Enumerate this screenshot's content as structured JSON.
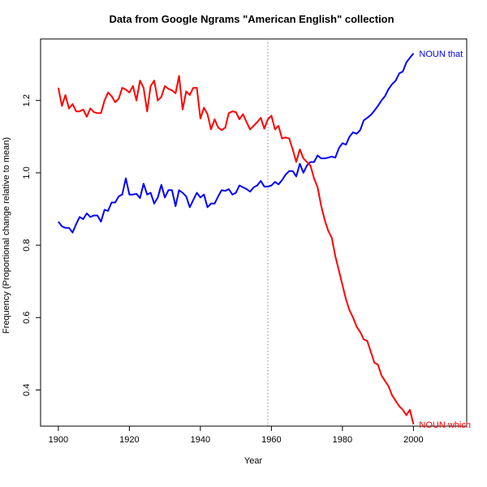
{
  "chart_data": {
    "type": "line",
    "title": "Data from Google Ngrams \"American English\" collection",
    "xlabel": "Year",
    "ylabel": "Frequency (Proportional change relative to mean)",
    "xlim": [
      1895,
      2015
    ],
    "ylim": [
      0.3,
      1.37
    ],
    "xticks": [
      1900,
      1920,
      1940,
      1960,
      1980,
      2000
    ],
    "yticks": [
      0.4,
      0.6,
      0.8,
      1.0,
      1.2
    ],
    "ytick_labels": [
      "0.4",
      "0.6",
      "0.8",
      "1.0",
      "1.2"
    ],
    "reference_line": {
      "x": 1959,
      "style": "dotted",
      "color": "#888888"
    },
    "grid": false,
    "series": [
      {
        "name": "NOUN that",
        "color": "#0000ff",
        "x": [
          1900,
          1901,
          1902,
          1903,
          1904,
          1905,
          1906,
          1907,
          1908,
          1909,
          1910,
          1911,
          1912,
          1913,
          1914,
          1915,
          1916,
          1917,
          1918,
          1919,
          1920,
          1921,
          1922,
          1923,
          1924,
          1925,
          1926,
          1927,
          1928,
          1929,
          1930,
          1931,
          1932,
          1933,
          1934,
          1935,
          1936,
          1937,
          1938,
          1939,
          1940,
          1941,
          1942,
          1943,
          1944,
          1945,
          1946,
          1947,
          1948,
          1949,
          1950,
          1951,
          1952,
          1953,
          1954,
          1955,
          1956,
          1957,
          1958,
          1959,
          1960,
          1961,
          1962,
          1963,
          1964,
          1965,
          1966,
          1967,
          1968,
          1969,
          1970,
          1971,
          1972,
          1973,
          1974,
          1975,
          1976,
          1977,
          1978,
          1979,
          1980,
          1981,
          1982,
          1983,
          1984,
          1985,
          1986,
          1987,
          1988,
          1989,
          1990,
          1991,
          1992,
          1993,
          1994,
          1995,
          1996,
          1997,
          1998,
          1999,
          2000
        ],
        "y": [
          0.865,
          0.852,
          0.848,
          0.848,
          0.835,
          0.858,
          0.878,
          0.872,
          0.888,
          0.878,
          0.882,
          0.882,
          0.865,
          0.898,
          0.895,
          0.918,
          0.918,
          0.935,
          0.94,
          0.985,
          0.94,
          0.94,
          0.942,
          0.93,
          0.97,
          0.94,
          0.945,
          0.915,
          0.932,
          0.967,
          0.932,
          0.952,
          0.952,
          0.908,
          0.952,
          0.945,
          0.935,
          0.905,
          0.925,
          0.945,
          0.932,
          0.94,
          0.905,
          0.915,
          0.915,
          0.935,
          0.952,
          0.95,
          0.955,
          0.94,
          0.945,
          0.965,
          0.96,
          0.955,
          0.948,
          0.96,
          0.965,
          0.978,
          0.962,
          0.962,
          0.965,
          0.975,
          0.968,
          0.98,
          0.995,
          1.005,
          1.005,
          0.99,
          1.025,
          1.0,
          1.02,
          1.03,
          1.03,
          1.048,
          1.04,
          1.04,
          1.042,
          1.045,
          1.042,
          1.068,
          1.082,
          1.078,
          1.1,
          1.112,
          1.108,
          1.118,
          1.145,
          1.152,
          1.16,
          1.172,
          1.185,
          1.2,
          1.212,
          1.232,
          1.245,
          1.255,
          1.275,
          1.28,
          1.305,
          1.318,
          1.33
        ]
      },
      {
        "name": "NOUN which",
        "color": "#ff0000",
        "x": [
          1900,
          1901,
          1902,
          1903,
          1904,
          1905,
          1906,
          1907,
          1908,
          1909,
          1910,
          1911,
          1912,
          1913,
          1914,
          1915,
          1916,
          1917,
          1918,
          1919,
          1920,
          1921,
          1922,
          1923,
          1924,
          1925,
          1926,
          1927,
          1928,
          1929,
          1930,
          1931,
          1932,
          1933,
          1934,
          1935,
          1936,
          1937,
          1938,
          1939,
          1940,
          1941,
          1942,
          1943,
          1944,
          1945,
          1946,
          1947,
          1948,
          1949,
          1950,
          1951,
          1952,
          1953,
          1954,
          1955,
          1956,
          1957,
          1958,
          1959,
          1960,
          1961,
          1962,
          1963,
          1964,
          1965,
          1966,
          1967,
          1968,
          1969,
          1970,
          1971,
          1972,
          1973,
          1974,
          1975,
          1976,
          1977,
          1978,
          1979,
          1980,
          1981,
          1982,
          1983,
          1984,
          1985,
          1986,
          1987,
          1988,
          1989,
          1990,
          1991,
          1992,
          1993,
          1994,
          1995,
          1996,
          1997,
          1998,
          1999,
          2000
        ],
        "y": [
          1.235,
          1.185,
          1.215,
          1.178,
          1.19,
          1.17,
          1.17,
          1.175,
          1.155,
          1.178,
          1.168,
          1.165,
          1.165,
          1.2,
          1.222,
          1.212,
          1.195,
          1.205,
          1.235,
          1.23,
          1.222,
          1.24,
          1.2,
          1.255,
          1.235,
          1.17,
          1.24,
          1.255,
          1.2,
          1.21,
          1.24,
          1.232,
          1.228,
          1.22,
          1.268,
          1.175,
          1.225,
          1.215,
          1.235,
          1.235,
          1.15,
          1.18,
          1.162,
          1.12,
          1.148,
          1.125,
          1.118,
          1.125,
          1.165,
          1.17,
          1.168,
          1.148,
          1.162,
          1.14,
          1.12,
          1.13,
          1.14,
          1.152,
          1.122,
          1.148,
          1.158,
          1.12,
          1.13,
          1.095,
          1.098,
          1.095,
          1.065,
          1.03,
          1.065,
          1.04,
          1.03,
          1.02,
          0.985,
          0.96,
          0.91,
          0.87,
          0.84,
          0.82,
          0.77,
          0.73,
          0.69,
          0.65,
          0.62,
          0.6,
          0.575,
          0.56,
          0.54,
          0.535,
          0.505,
          0.475,
          0.47,
          0.44,
          0.425,
          0.41,
          0.385,
          0.37,
          0.355,
          0.345,
          0.33,
          0.345,
          0.305
        ]
      }
    ]
  }
}
